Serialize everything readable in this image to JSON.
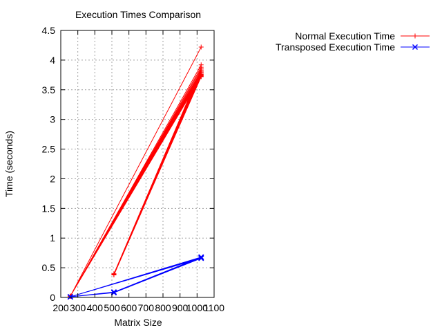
{
  "chart_data": {
    "type": "line",
    "title": "Execution Times Comparison",
    "xlabel": "Matrix Size",
    "ylabel": "Time (seconds)",
    "xlim": [
      200,
      1100
    ],
    "ylim": [
      0,
      4.5
    ],
    "xticks": [
      200,
      300,
      400,
      500,
      600,
      700,
      800,
      900,
      1000,
      1100
    ],
    "yticks": [
      0,
      0.5,
      1,
      1.5,
      2,
      2.5,
      3,
      3.5,
      4,
      4.5
    ],
    "grid": true,
    "legend_position": "top-right, outside plot",
    "series": [
      {
        "name": "Normal Execution Time",
        "color": "#ff0000",
        "marker": "plus",
        "x": [
          256,
          1024,
          256,
          1024,
          256,
          1024,
          256,
          1024,
          256,
          1024,
          256,
          1024,
          256,
          1024,
          256,
          1024,
          256,
          1024,
          256,
          1024,
          512,
          1024,
          512,
          1024,
          512,
          1024,
          512,
          1024,
          512,
          1024,
          512,
          1024,
          512
        ],
        "y": [
          0.02,
          4.22,
          0.02,
          3.92,
          0.02,
          3.88,
          0.02,
          3.85,
          0.02,
          3.82,
          0.02,
          3.8,
          0.02,
          3.78,
          0.02,
          3.76,
          0.02,
          3.74,
          0.02,
          3.72,
          0.4,
          3.85,
          0.39,
          3.82,
          0.38,
          3.8,
          0.38,
          3.78,
          0.39,
          3.75,
          0.38,
          3.73,
          0.39
        ]
      },
      {
        "name": "Transposed Execution Time",
        "color": "#0000ff",
        "marker": "cross",
        "x": [
          256,
          1024,
          256,
          1024,
          256,
          1024,
          512,
          1024,
          512,
          1024,
          512,
          1024,
          512,
          256,
          512,
          256,
          512,
          256
        ],
        "y": [
          0.01,
          0.68,
          0.01,
          0.67,
          0.01,
          0.66,
          0.08,
          0.67,
          0.09,
          0.66,
          0.09,
          0.68,
          0.08,
          0.01,
          0.09,
          0.01,
          0.08,
          0.01
        ]
      }
    ]
  }
}
